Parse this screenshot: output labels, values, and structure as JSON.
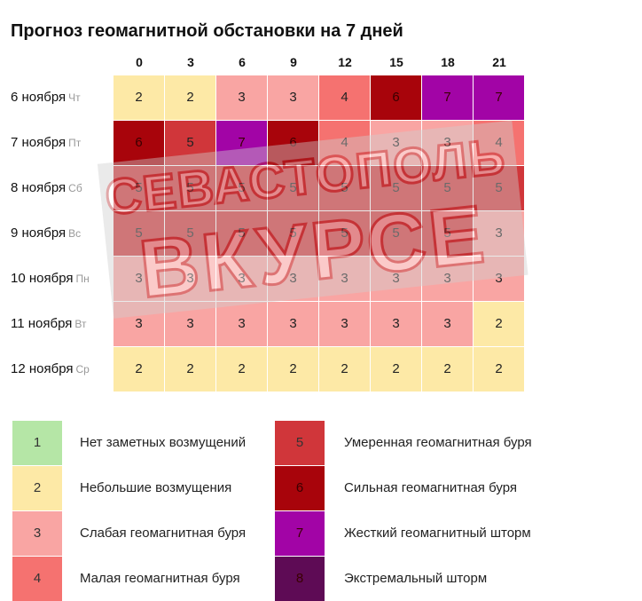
{
  "title": "Прогноз геомагнитной обстановки на 7 дней",
  "chart_data": {
    "type": "heatmap",
    "title": "Прогноз геомагнитной обстановки на 7 дней",
    "columns": [
      "0",
      "3",
      "6",
      "9",
      "12",
      "15",
      "18",
      "21"
    ],
    "rows": [
      {
        "date": "6 ноября",
        "dow": "Чт",
        "values": [
          2,
          2,
          3,
          3,
          4,
          6,
          7,
          7
        ]
      },
      {
        "date": "7 ноября",
        "dow": "Пт",
        "values": [
          6,
          5,
          7,
          6,
          4,
          3,
          3,
          4
        ]
      },
      {
        "date": "8 ноября",
        "dow": "Сб",
        "values": [
          5,
          5,
          5,
          5,
          5,
          5,
          5,
          5
        ]
      },
      {
        "date": "9 ноября",
        "dow": "Вс",
        "values": [
          5,
          5,
          5,
          5,
          5,
          5,
          5,
          3
        ]
      },
      {
        "date": "10 ноября",
        "dow": "Пн",
        "values": [
          3,
          3,
          3,
          3,
          3,
          3,
          3,
          3
        ]
      },
      {
        "date": "11 ноября",
        "dow": "Вт",
        "values": [
          3,
          3,
          3,
          3,
          3,
          3,
          3,
          2
        ]
      },
      {
        "date": "12 ноября",
        "dow": "Ср",
        "values": [
          2,
          2,
          2,
          2,
          2,
          2,
          2,
          2
        ]
      }
    ]
  },
  "legend": [
    {
      "level": "1",
      "label": "Нет заметных возмущений",
      "color": "#b5e6a6"
    },
    {
      "level": "2",
      "label": "Небольшие возмущения",
      "color": "#fde9a6"
    },
    {
      "level": "3",
      "label": "Слабая геомагнитная буря",
      "color": "#f9a5a3"
    },
    {
      "level": "4",
      "label": "Малая геомагнитная буря",
      "color": "#f57270"
    },
    {
      "level": "5",
      "label": "Умеренная геомагнитная буря",
      "color": "#d0363a"
    },
    {
      "level": "6",
      "label": "Сильная геомагнитная буря",
      "color": "#a8040b"
    },
    {
      "level": "7",
      "label": "Жесткий геомагнитный шторм",
      "color": "#a204a6"
    },
    {
      "level": "8",
      "label": "Экстремальный шторм",
      "color": "#5e0b55"
    }
  ],
  "watermark": {
    "line1": "СЕВАСТОПОЛЬ",
    "line2": "ВКУРСЕ"
  }
}
